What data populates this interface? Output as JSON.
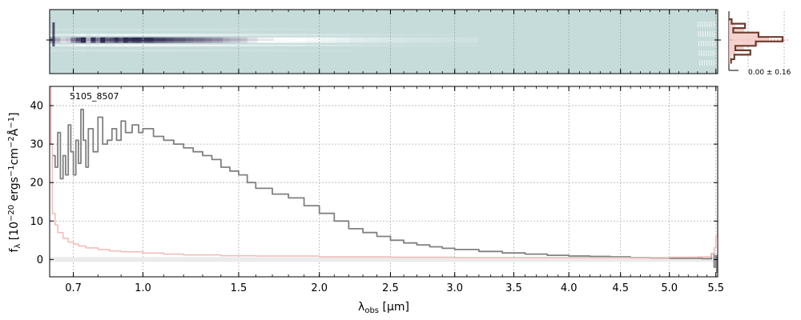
{
  "figure": {
    "object_id": "5105_8507",
    "profile_annotation": "0.00 ± 0.16"
  },
  "chart_data": [
    {
      "type": "heatmap",
      "description": "2D spectrum panel",
      "x": {
        "range": [
          0.61,
          5.52
        ],
        "unit": "micron",
        "scale": "sqrt"
      },
      "trace_rows": [
        {
          "offset": -6,
          "relative_intensity": 0.08
        },
        {
          "offset": -3,
          "relative_intensity": 0.35
        },
        {
          "offset": -1,
          "relative_intensity": 0.95
        },
        {
          "offset": 0,
          "relative_intensity": 1.0
        },
        {
          "offset": 1,
          "relative_intensity": 0.9
        },
        {
          "offset": 3,
          "relative_intensity": 0.4
        },
        {
          "offset": 6,
          "relative_intensity": 0.1
        }
      ],
      "colormap": [
        "#c6dcdb",
        "#ffffff",
        "#2f2b52"
      ]
    },
    {
      "type": "line",
      "description": "Spatial profile panel",
      "annotation": "0.00 ± 0.16",
      "profile": [
        0.05,
        0.3,
        0.08,
        0.55,
        1.0,
        0.5,
        0.12,
        0.4,
        0.1,
        0.04
      ],
      "colors": {
        "profile": "#6b3d2e",
        "fill": "#f4c7c3",
        "reference": "#d9534f"
      }
    },
    {
      "type": "line",
      "title": "",
      "xlabel": "λobs [μm]",
      "ylabel": "fλ [10−20 ergs−1cm−2Å−1]",
      "x_ticks": [
        0.7,
        1.0,
        1.5,
        2.0,
        2.5,
        3.0,
        3.5,
        4.0,
        4.5,
        5.0,
        5.5
      ],
      "x_tick_labels": [
        "0.7",
        "1.0",
        "1.5",
        "2.0",
        "2.5",
        "3.0",
        "3.5",
        "4.0",
        "4.5",
        "5.0",
        "5.5"
      ],
      "y_ticks": [
        0,
        10,
        20,
        30,
        40
      ],
      "y_tick_labels": [
        "0",
        "10",
        "20",
        "30",
        "40"
      ],
      "xlim": [
        0.61,
        5.52
      ],
      "ylim": [
        -4.5,
        45
      ],
      "x_scale": "sqrt",
      "grid": true,
      "series": [
        {
          "color": "#808080",
          "points": [
            [
              0.62,
              27
            ],
            [
              0.63,
              24
            ],
            [
              0.64,
              33
            ],
            [
              0.65,
              21
            ],
            [
              0.66,
              27
            ],
            [
              0.67,
              22
            ],
            [
              0.68,
              35
            ],
            [
              0.69,
              28
            ],
            [
              0.7,
              22
            ],
            [
              0.71,
              31
            ],
            [
              0.72,
              25
            ],
            [
              0.73,
              39
            ],
            [
              0.74,
              31
            ],
            [
              0.75,
              24
            ],
            [
              0.76,
              34
            ],
            [
              0.78,
              28
            ],
            [
              0.8,
              37
            ],
            [
              0.82,
              30
            ],
            [
              0.84,
              31
            ],
            [
              0.86,
              34
            ],
            [
              0.88,
              31
            ],
            [
              0.9,
              36
            ],
            [
              0.92,
              33
            ],
            [
              0.95,
              35
            ],
            [
              0.98,
              33
            ],
            [
              1.0,
              34
            ],
            [
              1.05,
              32
            ],
            [
              1.1,
              31
            ],
            [
              1.15,
              30
            ],
            [
              1.2,
              29
            ],
            [
              1.25,
              28
            ],
            [
              1.3,
              27
            ],
            [
              1.35,
              26
            ],
            [
              1.4,
              24
            ],
            [
              1.45,
              23
            ],
            [
              1.5,
              22
            ],
            [
              1.55,
              20
            ],
            [
              1.6,
              18.5
            ],
            [
              1.7,
              17
            ],
            [
              1.8,
              16
            ],
            [
              1.9,
              14
            ],
            [
              2.0,
              12
            ],
            [
              2.1,
              10
            ],
            [
              2.2,
              8
            ],
            [
              2.3,
              7
            ],
            [
              2.4,
              6
            ],
            [
              2.5,
              5
            ],
            [
              2.6,
              4.3
            ],
            [
              2.7,
              3.8
            ],
            [
              2.8,
              3.3
            ],
            [
              2.9,
              2.9
            ],
            [
              3.0,
              2.6
            ],
            [
              3.2,
              2.1
            ],
            [
              3.4,
              1.7
            ],
            [
              3.6,
              1.4
            ],
            [
              3.8,
              1.1
            ],
            [
              4.0,
              0.9
            ],
            [
              4.2,
              0.8
            ],
            [
              4.4,
              0.7
            ],
            [
              4.6,
              0.5
            ],
            [
              4.8,
              0.4
            ],
            [
              5.0,
              0.3
            ],
            [
              5.2,
              0.3
            ],
            [
              5.35,
              0.2
            ],
            [
              5.45,
              1.5
            ],
            [
              5.48,
              -2
            ],
            [
              5.5,
              1
            ],
            [
              5.51,
              -3.5
            ]
          ]
        },
        {
          "color": "#f4b8b8",
          "points": [
            [
              0.61,
              45
            ],
            [
              0.615,
              30
            ],
            [
              0.62,
              12
            ],
            [
              0.63,
              9
            ],
            [
              0.64,
              7
            ],
            [
              0.66,
              5.5
            ],
            [
              0.68,
              4.5
            ],
            [
              0.7,
              4
            ],
            [
              0.72,
              3.5
            ],
            [
              0.75,
              3
            ],
            [
              0.8,
              2.6
            ],
            [
              0.85,
              2.2
            ],
            [
              0.9,
              2
            ],
            [
              1.0,
              1.7
            ],
            [
              1.1,
              1.4
            ],
            [
              1.2,
              1.2
            ],
            [
              1.4,
              1.0
            ],
            [
              1.6,
              0.9
            ],
            [
              2.0,
              0.7
            ],
            [
              2.5,
              0.6
            ],
            [
              3.0,
              0.5
            ],
            [
              3.5,
              0.5
            ],
            [
              4.0,
              0.5
            ],
            [
              4.5,
              0.5
            ],
            [
              5.0,
              0.6
            ],
            [
              5.3,
              0.7
            ],
            [
              5.45,
              1.5
            ],
            [
              5.48,
              3
            ],
            [
              5.5,
              6
            ],
            [
              5.52,
              10
            ]
          ]
        }
      ]
    }
  ]
}
